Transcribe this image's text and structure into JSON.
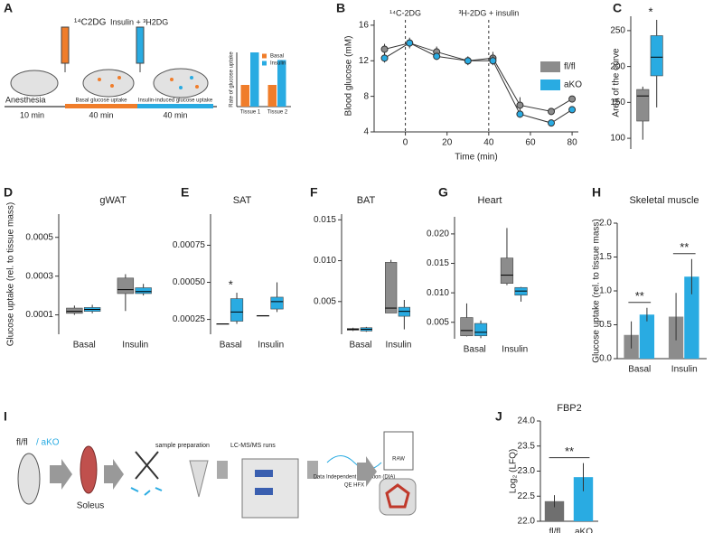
{
  "panel_letters": [
    "A",
    "B",
    "C",
    "D",
    "E",
    "F",
    "G",
    "H",
    "I",
    "J"
  ],
  "panel_a": {
    "injection_1": "¹⁴C2DG",
    "injection_2": "Insulin + ³H2DG",
    "anesthesia": "Anesthesia",
    "time_1": "10 min",
    "time_2": "40 min",
    "time_3": "40 min",
    "phase_1": "Basal glucose uptake",
    "phase_2": "Insulin-induced glucose uptake"
  },
  "panel_i": {
    "genotype_1": "fl/fl",
    "genotype_2": "/ aKO",
    "tissue": "Soleus",
    "step_1": "sample preparation",
    "step_2": "LC-MS/MS runs",
    "step_3": "Data Independent Aquisition (DIA)",
    "instrument": "QE HFX",
    "file": "RAW"
  },
  "chart_data": [
    {
      "type": "bar",
      "ylabel": "Rate of glucose uptake",
      "categories": [
        "Tissue 1",
        "Tissue 2"
      ],
      "ylim": [
        0,
        100
      ],
      "legend": "top-right",
      "series": [
        {
          "name": "Basal",
          "color": "#f07d2a",
          "values": [
            40,
            40
          ]
        },
        {
          "name": "Insulin",
          "color": "#29abe2",
          "values": [
            100,
            86
          ]
        }
      ]
    },
    {
      "type": "line",
      "xlabel": "Time (min)",
      "ylabel": "Blood glucose (mM)",
      "x": [
        -10,
        2,
        15,
        30,
        42,
        55,
        70,
        80
      ],
      "xlim": [
        -15,
        83
      ],
      "ylim": [
        4,
        16.6
      ],
      "xticks": [
        0,
        20,
        40,
        60,
        80
      ],
      "yticks": [
        4,
        8,
        12,
        16
      ],
      "legend": "right",
      "vlines": [
        0,
        40
      ],
      "annotations": [
        "¹⁴C-2DG",
        "³H-2DG + insulin"
      ],
      "series": [
        {
          "name": "fl/fl",
          "color": "#8c8c8c",
          "values": [
            13.3,
            14.0,
            13.0,
            12.0,
            12.3,
            7.0,
            6.3,
            7.7
          ],
          "errors": [
            0.6,
            0.6,
            0.6,
            0.5,
            0.7,
            0.9,
            0.4,
            0.3
          ]
        },
        {
          "name": "aKO",
          "color": "#29abe2",
          "values": [
            12.3,
            14.0,
            12.5,
            12.0,
            12.0,
            6.0,
            5.0,
            6.5
          ],
          "errors": [
            0.5,
            0.4,
            0.4,
            0.4,
            0.5,
            0.4,
            0.4,
            0.4
          ]
        }
      ]
    },
    {
      "type": "boxplot",
      "ylabel": "Area of the curve",
      "categories": [
        null
      ],
      "ylim": [
        85,
        270
      ],
      "yticks": [
        100,
        150,
        200,
        250
      ],
      "annotations": [
        "*"
      ],
      "series": [
        {
          "color": "#8c8c8c",
          "boxes": [
            {
              "whislo": 98,
              "q1": 124,
              "med": 159,
              "q3": 168,
              "whishi": 172
            }
          ]
        },
        {
          "color": "#29abe2",
          "boxes": [
            {
              "whislo": 143,
              "q1": 187,
              "med": 213,
              "q3": 243,
              "whishi": 265
            }
          ]
        }
      ]
    },
    {
      "type": "boxplot",
      "title": "gWAT",
      "ylabel": "Glucose uptake (rel. to tissue mass)",
      "categories": [
        "Basal",
        "Insulin"
      ],
      "ylim": [
        0,
        0.00062
      ],
      "yticks": [
        0.0001,
        0.0003,
        0.0005
      ],
      "series": [
        {
          "color": "#8c8c8c",
          "boxes": [
            {
              "whislo": 0.0001,
              "q1": 0.000108,
              "med": 0.000118,
              "q3": 0.000135,
              "whishi": 0.000148
            },
            {
              "whislo": 0.00012,
              "q1": 0.00021,
              "med": 0.00023,
              "q3": 0.00029,
              "whishi": 0.00031
            }
          ]
        },
        {
          "color": "#29abe2",
          "boxes": [
            {
              "whislo": 0.000108,
              "q1": 0.000118,
              "med": 0.000128,
              "q3": 0.000138,
              "whishi": 0.000152
            },
            {
              "whislo": 0.0002,
              "q1": 0.00021,
              "med": 0.00022,
              "q3": 0.00024,
              "whishi": 0.00026
            }
          ]
        }
      ]
    },
    {
      "type": "boxplot",
      "title": "SAT",
      "categories": [
        "Basal",
        "Insulin"
      ],
      "ylim": [
        0.00015,
        0.00096
      ],
      "yticks": [
        0.00025,
        {
          "value": 0.0005,
          "label": "0.00050"
        },
        0.00075
      ],
      "annotations": [
        "*"
      ],
      "series": [
        {
          "color": "#8c8c8c",
          "boxes": [
            {
              "whislo": 0.00022,
              "q1": 0.00022,
              "med": 0.00022,
              "q3": 0.00022,
              "whishi": 0.00022
            },
            {
              "whislo": 0.000275,
              "q1": 0.000275,
              "med": 0.000275,
              "q3": 0.000275,
              "whishi": 0.000275
            }
          ]
        },
        {
          "color": "#29abe2",
          "boxes": [
            {
              "whislo": 0.00022,
              "q1": 0.000238,
              "med": 0.0003,
              "q3": 0.00039,
              "whishi": 0.00043
            },
            {
              "whislo": 0.0003,
              "q1": 0.00032,
              "med": 0.00037,
              "q3": 0.0004,
              "whishi": 0.0005
            }
          ]
        }
      ]
    },
    {
      "type": "boxplot",
      "title": "BAT",
      "categories": [
        "Basal",
        "Insulin"
      ],
      "ylim": [
        0.001,
        0.0157
      ],
      "yticks": [
        0.005,
        {
          "value": 0.01,
          "label": "0.010"
        },
        0.015
      ],
      "series": [
        {
          "color": "#8c8c8c",
          "boxes": [
            {
              "whislo": 0.0014,
              "q1": 0.0015,
              "med": 0.0016,
              "q3": 0.0017,
              "whishi": 0.0018
            },
            {
              "whislo": 0.0036,
              "q1": 0.0036,
              "med": 0.0042,
              "q3": 0.0098,
              "whishi": 0.0101
            }
          ]
        },
        {
          "color": "#29abe2",
          "boxes": [
            {
              "whislo": 0.0013,
              "q1": 0.0014,
              "med": 0.0016,
              "q3": 0.0018,
              "whishi": 0.0019
            },
            {
              "whislo": 0.0016,
              "q1": 0.0032,
              "med": 0.0038,
              "q3": 0.0043,
              "whishi": 0.0052
            }
          ]
        }
      ]
    },
    {
      "type": "boxplot",
      "title": "Heart",
      "categories": [
        "Basal",
        "Insulin"
      ],
      "ylim": [
        0.0022,
        0.0229
      ],
      "yticks": [
        0.005,
        {
          "value": 0.01,
          "label": "0.010"
        },
        0.015,
        {
          "value": 0.02,
          "label": "0.020"
        }
      ],
      "series": [
        {
          "color": "#8c8c8c",
          "boxes": [
            {
              "whislo": 0.0026,
              "q1": 0.0027,
              "med": 0.0036,
              "q3": 0.0058,
              "whishi": 0.0082
            },
            {
              "whislo": 0.0113,
              "q1": 0.0116,
              "med": 0.013,
              "q3": 0.0159,
              "whishi": 0.021
            }
          ]
        },
        {
          "color": "#29abe2",
          "boxes": [
            {
              "whislo": 0.0023,
              "q1": 0.0027,
              "med": 0.0033,
              "q3": 0.0048,
              "whishi": 0.0053
            },
            {
              "whislo": 0.0085,
              "q1": 0.0096,
              "med": 0.0103,
              "q3": 0.0109,
              "whishi": 0.011
            }
          ]
        }
      ]
    },
    {
      "type": "bar",
      "title": "Skeletal muscle",
      "ylabel": "Glucose uptake (rel. to tissue mass)",
      "categories": [
        "Basal",
        "Insulin"
      ],
      "ylim": [
        0,
        2
      ],
      "yticks": [
        {
          "value": 0,
          "label": "0.0"
        },
        0.5,
        {
          "value": 1,
          "label": "1.0"
        },
        1.5,
        {
          "value": 2,
          "label": "2.0"
        }
      ],
      "annotations": [
        "**",
        "**"
      ],
      "series": [
        {
          "color": "#8c8c8c",
          "values": [
            0.35,
            0.62
          ],
          "errors": [
            0.2,
            0.35
          ]
        },
        {
          "color": "#29abe2",
          "values": [
            0.65,
            1.21
          ],
          "errors": [
            0.1,
            0.26
          ]
        }
      ]
    },
    {
      "type": "bar",
      "title": "FBP2",
      "ylabel": "Log₂ (LFQ)",
      "categories": [
        "fl/fl",
        "aKO"
      ],
      "ylim": [
        22,
        24
      ],
      "yticks": [
        {
          "value": 22,
          "label": "22.0"
        },
        22.5,
        {
          "value": 23,
          "label": "23.0"
        },
        23.5,
        {
          "value": 24,
          "label": "24.0"
        }
      ],
      "annotations": [
        "**"
      ],
      "values": [
        22.4,
        22.88
      ],
      "errors": [
        0.12,
        0.28
      ],
      "colors": [
        "#6f6f6f",
        "#29abe2"
      ]
    }
  ]
}
